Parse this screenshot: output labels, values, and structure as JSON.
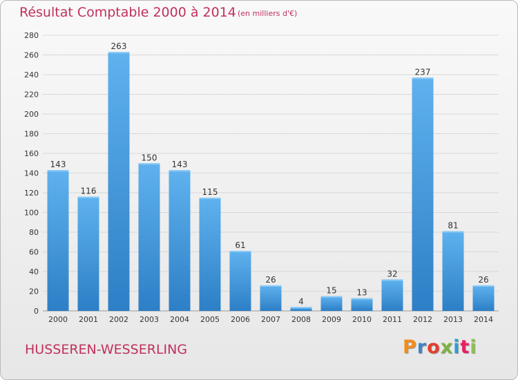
{
  "title": "Résultat Comptable 2000 à 2014",
  "subtitle": "(en milliers d'€)",
  "commune": "HUSSEREN-WESSERLING",
  "brand": {
    "text": "Proxiti",
    "letter_colors": [
      "#f28c1e",
      "#3a86c8",
      "#e53d2f",
      "#7cb342",
      "#2a9fd6",
      "#e91e63",
      "#8bc34a"
    ]
  },
  "colors": {
    "title": "#c0305c",
    "bar_top": "#5fb2ee",
    "bar_bottom": "#2d7fc6",
    "grid": "#d8d8d8",
    "axis_text": "#333333"
  },
  "chart_data": {
    "type": "bar",
    "title": "Résultat Comptable 2000 à 2014",
    "subtitle": "(en milliers d'€)",
    "categories": [
      "2000",
      "2001",
      "2002",
      "2003",
      "2004",
      "2005",
      "2006",
      "2007",
      "2008",
      "2009",
      "2010",
      "2011",
      "2012",
      "2013",
      "2014"
    ],
    "values": [
      143,
      116,
      263,
      150,
      143,
      115,
      61,
      26,
      4,
      15,
      13,
      32,
      237,
      81,
      26
    ],
    "ylim": [
      0,
      280
    ],
    "yticks": [
      0,
      20,
      40,
      60,
      80,
      100,
      120,
      140,
      160,
      180,
      200,
      220,
      240,
      260,
      280
    ],
    "grid": true,
    "data_labels": true
  }
}
